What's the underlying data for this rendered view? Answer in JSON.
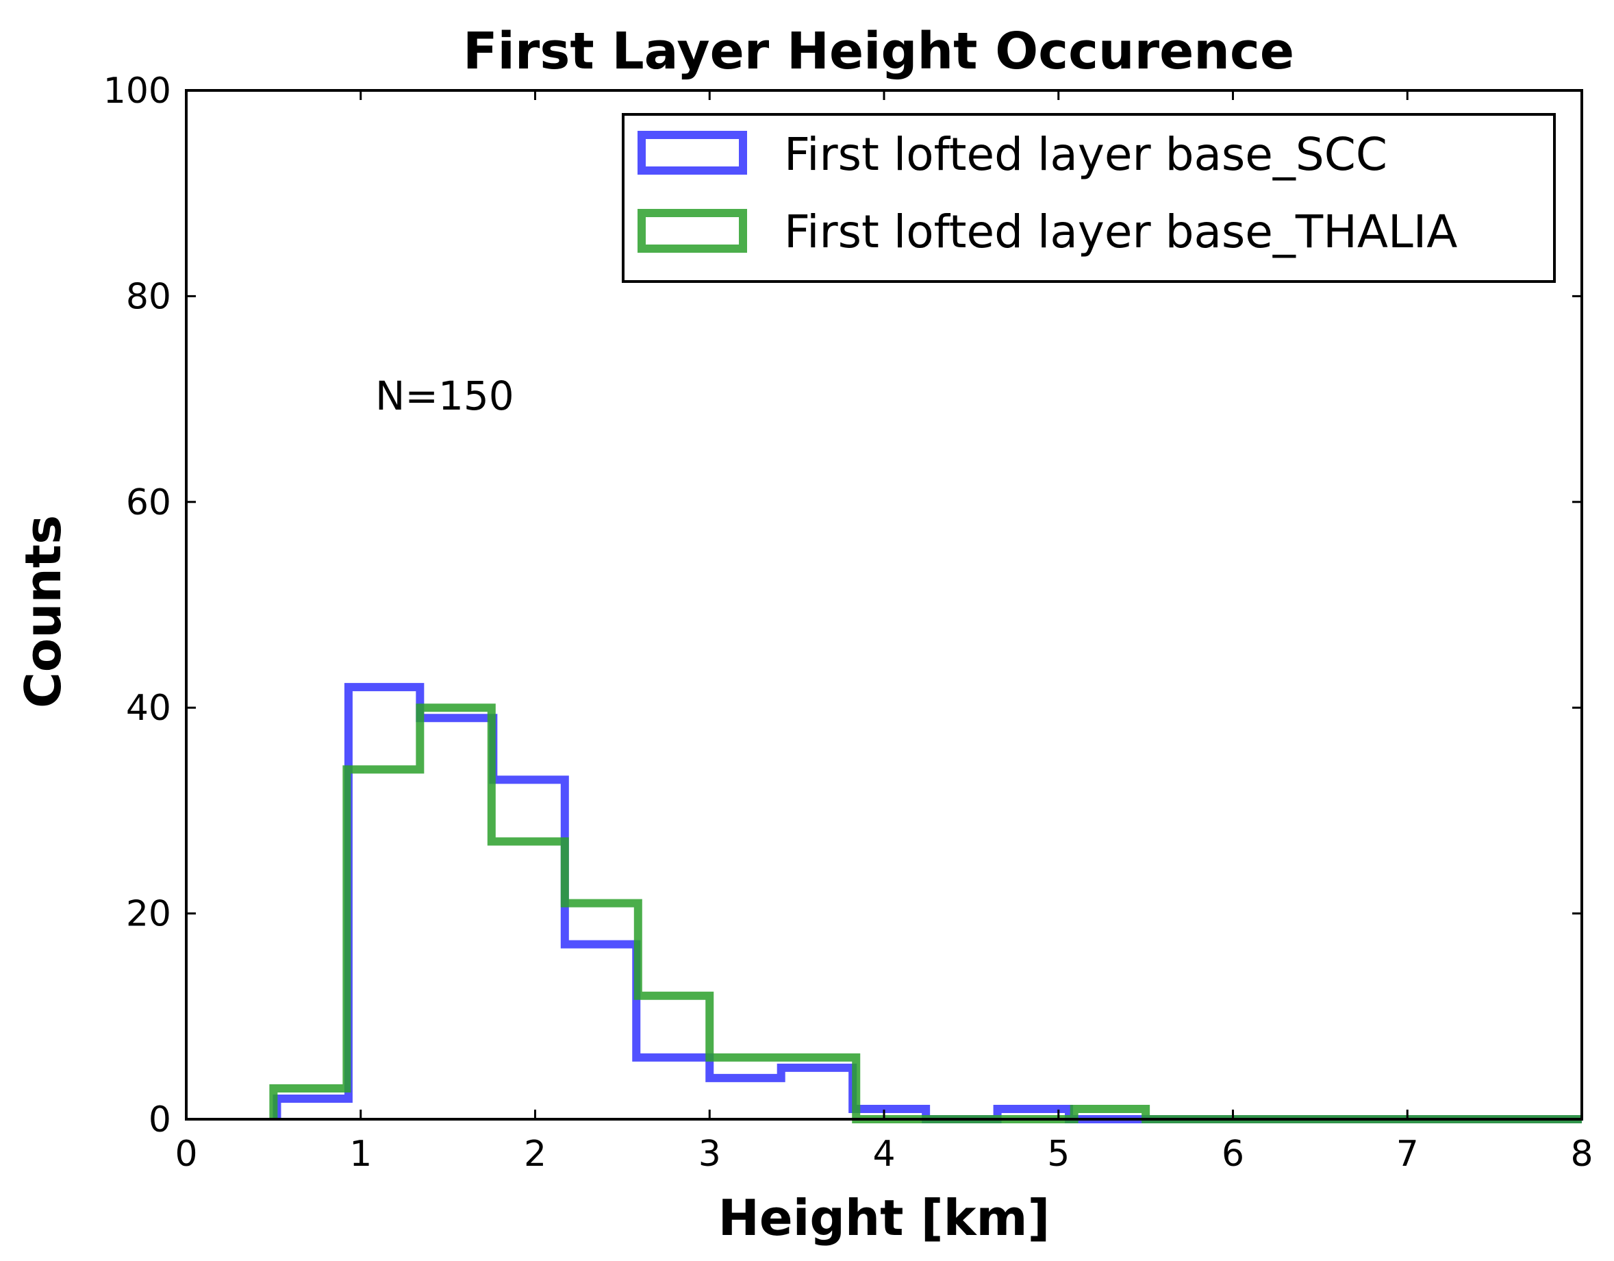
{
  "chart_data": {
    "type": "histogram",
    "title": "First Layer Height Occurence",
    "xlabel": "Height [km]",
    "ylabel": "Counts",
    "xlim": [
      0,
      8
    ],
    "ylim": [
      0,
      100
    ],
    "xticks": [
      "0",
      "1",
      "2",
      "3",
      "4",
      "5",
      "6",
      "7",
      "8"
    ],
    "yticks": [
      "0",
      "20",
      "40",
      "60",
      "80",
      "100"
    ],
    "grid": false,
    "legend_position": "top-right",
    "annotation": "N=150",
    "series": [
      {
        "name": "First lofted layer base_SCC",
        "color": "#3333ff",
        "bin_edges": [
          0.52,
          0.93,
          1.34,
          1.76,
          2.17,
          2.58,
          3.0,
          3.41,
          3.82,
          4.24,
          4.65,
          5.06,
          5.48,
          5.89,
          6.3,
          6.71,
          7.13,
          7.54,
          8.0
        ],
        "counts": [
          2,
          42,
          39,
          33,
          17,
          6,
          4,
          5,
          1,
          0,
          1,
          0,
          0,
          0,
          0,
          0,
          0,
          0
        ]
      },
      {
        "name": "First lofted layer base_THALIA",
        "color": "#2ca02c",
        "bin_edges": [
          0.5,
          0.92,
          1.34,
          1.75,
          2.17,
          2.59,
          3.0,
          3.42,
          3.84,
          4.25,
          4.67,
          5.09,
          5.5,
          5.92,
          6.34,
          6.75,
          7.17,
          7.59,
          8.0
        ],
        "counts": [
          3,
          34,
          40,
          27,
          21,
          12,
          6,
          6,
          0,
          0,
          0,
          1,
          0,
          0,
          0,
          0,
          0,
          0
        ]
      }
    ]
  }
}
